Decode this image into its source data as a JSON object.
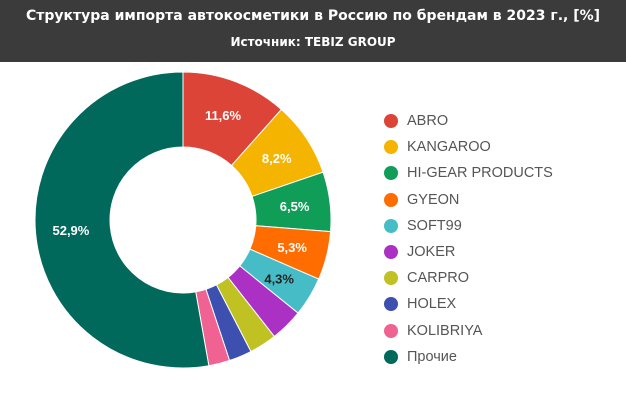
{
  "header": {
    "title": "Структура импорта автокосметики в Россию по брендам в 2023 г., [%]",
    "subtitle": "Источник: TEBIZ GROUP"
  },
  "chart_data": {
    "type": "pie",
    "donut": true,
    "title": "Структура импорта автокосметики в Россию по брендам в 2023 г., [%]",
    "subtitle": "Источник: TEBIZ GROUP",
    "legend_position": "right",
    "slices": [
      {
        "name": "ABRO",
        "value": 11.6,
        "label": "11,6%",
        "color": "#db4437"
      },
      {
        "name": "KANGAROO",
        "value": 8.2,
        "label": "8,2%",
        "color": "#f4b400"
      },
      {
        "name": "HI-GEAR PRODUCTS",
        "value": 6.5,
        "label": "6,5%",
        "color": "#0f9d58"
      },
      {
        "name": "GYEON",
        "value": 5.3,
        "label": "5,3%",
        "color": "#ff6d01"
      },
      {
        "name": "SOFT99",
        "value": 4.3,
        "label": "4,3%",
        "color": "#46bdc6"
      },
      {
        "name": "JOKER",
        "value": 3.6,
        "label": "",
        "color": "#ab30c4"
      },
      {
        "name": "CARPRO",
        "value": 3.0,
        "label": "",
        "color": "#c0c122"
      },
      {
        "name": "HOLEX",
        "value": 2.5,
        "label": "",
        "color": "#3d4faf"
      },
      {
        "name": "KOLIBRIYA",
        "value": 2.3,
        "label": "",
        "color": "#f06292"
      },
      {
        "name": "Прочие",
        "value": 52.9,
        "label": "52,9%",
        "color": "#00695c"
      }
    ]
  }
}
